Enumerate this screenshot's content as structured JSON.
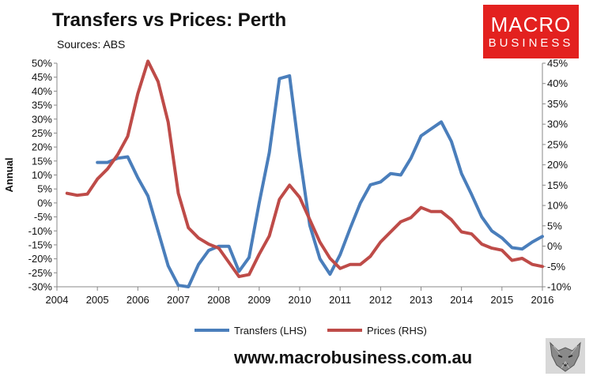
{
  "header": {
    "title": "Transfers vs Prices: Perth",
    "subtitle": "Sources: ABS"
  },
  "logo": {
    "line1": "MACRO",
    "line2": "BUSINESS",
    "color": "#e3211f"
  },
  "footer": {
    "url": "www.macrobusiness.com.au"
  },
  "chart_data": {
    "type": "line",
    "title": "Transfers vs Prices: Perth",
    "ylabel": "Annual",
    "xlabel": "",
    "x_ticks": [
      "2004",
      "2005",
      "2006",
      "2007",
      "2008",
      "2009",
      "2010",
      "2011",
      "2012",
      "2013",
      "2014",
      "2015",
      "2016"
    ],
    "xlim": [
      2004,
      2016
    ],
    "ylim_left": [
      -30,
      50
    ],
    "y_ticks_left": [
      "-30%",
      "-25%",
      "-20%",
      "-15%",
      "-10%",
      "-5%",
      "0%",
      "5%",
      "10%",
      "15%",
      "20%",
      "25%",
      "30%",
      "35%",
      "40%",
      "45%",
      "50%"
    ],
    "ylim_right": [
      -10,
      45
    ],
    "y_ticks_right": [
      "-10%",
      "-5%",
      "0%",
      "5%",
      "10%",
      "15%",
      "20%",
      "25%",
      "30%",
      "35%",
      "40%",
      "45%"
    ],
    "grid": "horizontal none",
    "legend_position": "bottom",
    "series": [
      {
        "name": "Transfers (LHS)",
        "axis": "left",
        "color": "#4a7ebb",
        "points": [
          [
            2005.0,
            14.5
          ],
          [
            2005.25,
            14.5
          ],
          [
            2005.5,
            16.0
          ],
          [
            2005.75,
            16.5
          ],
          [
            2006.0,
            9.0
          ],
          [
            2006.25,
            2.5
          ],
          [
            2006.5,
            -10.0
          ],
          [
            2006.75,
            -22.5
          ],
          [
            2007.0,
            -29.5
          ],
          [
            2007.25,
            -30.0
          ],
          [
            2007.5,
            -22.0
          ],
          [
            2007.75,
            -17.0
          ],
          [
            2008.0,
            -15.5
          ],
          [
            2008.25,
            -15.5
          ],
          [
            2008.5,
            -24.5
          ],
          [
            2008.75,
            -19.5
          ],
          [
            2009.0,
            0.0
          ],
          [
            2009.25,
            18.0
          ],
          [
            2009.5,
            44.5
          ],
          [
            2009.75,
            45.5
          ],
          [
            2010.0,
            17.0
          ],
          [
            2010.25,
            -8.0
          ],
          [
            2010.5,
            -20.0
          ],
          [
            2010.75,
            -25.5
          ],
          [
            2011.0,
            -18.5
          ],
          [
            2011.25,
            -9.0
          ],
          [
            2011.5,
            0.0
          ],
          [
            2011.75,
            6.5
          ],
          [
            2012.0,
            7.5
          ],
          [
            2012.25,
            10.5
          ],
          [
            2012.5,
            10.0
          ],
          [
            2012.75,
            16.0
          ],
          [
            2013.0,
            24.0
          ],
          [
            2013.25,
            26.5
          ],
          [
            2013.5,
            29.0
          ],
          [
            2013.75,
            22.0
          ],
          [
            2014.0,
            10.5
          ],
          [
            2014.25,
            3.0
          ],
          [
            2014.5,
            -5.0
          ],
          [
            2014.75,
            -10.0
          ],
          [
            2015.0,
            -12.5
          ],
          [
            2015.25,
            -16.0
          ],
          [
            2015.5,
            -16.5
          ],
          [
            2015.75,
            -14.0
          ],
          [
            2016.0,
            -12.0
          ]
        ]
      },
      {
        "name": "Prices (RHS)",
        "axis": "right",
        "color": "#be4b48",
        "points": [
          [
            2004.25,
            13.0
          ],
          [
            2004.5,
            12.5
          ],
          [
            2004.75,
            12.8
          ],
          [
            2005.0,
            16.5
          ],
          [
            2005.25,
            19.0
          ],
          [
            2005.5,
            22.5
          ],
          [
            2005.75,
            27.0
          ],
          [
            2006.0,
            37.5
          ],
          [
            2006.25,
            45.5
          ],
          [
            2006.5,
            40.5
          ],
          [
            2006.75,
            30.5
          ],
          [
            2007.0,
            13.0
          ],
          [
            2007.25,
            4.5
          ],
          [
            2007.5,
            2.0
          ],
          [
            2007.75,
            0.5
          ],
          [
            2008.0,
            -0.5
          ],
          [
            2008.25,
            -4.0
          ],
          [
            2008.5,
            -7.5
          ],
          [
            2008.75,
            -7.0
          ],
          [
            2009.0,
            -2.0
          ],
          [
            2009.25,
            2.5
          ],
          [
            2009.5,
            11.5
          ],
          [
            2009.75,
            15.0
          ],
          [
            2010.0,
            12.0
          ],
          [
            2010.25,
            6.5
          ],
          [
            2010.5,
            1.0
          ],
          [
            2010.75,
            -3.0
          ],
          [
            2011.0,
            -5.5
          ],
          [
            2011.25,
            -4.5
          ],
          [
            2011.5,
            -4.5
          ],
          [
            2011.75,
            -2.5
          ],
          [
            2012.0,
            1.0
          ],
          [
            2012.25,
            3.5
          ],
          [
            2012.5,
            6.0
          ],
          [
            2012.75,
            7.0
          ],
          [
            2013.0,
            9.5
          ],
          [
            2013.25,
            8.5
          ],
          [
            2013.5,
            8.5
          ],
          [
            2013.75,
            6.5
          ],
          [
            2014.0,
            3.5
          ],
          [
            2014.25,
            3.0
          ],
          [
            2014.5,
            0.5
          ],
          [
            2014.75,
            -0.5
          ],
          [
            2015.0,
            -1.0
          ],
          [
            2015.25,
            -3.5
          ],
          [
            2015.5,
            -3.0
          ],
          [
            2015.75,
            -4.5
          ],
          [
            2016.0,
            -5.0
          ]
        ]
      }
    ]
  }
}
